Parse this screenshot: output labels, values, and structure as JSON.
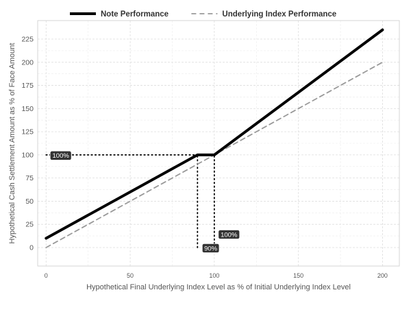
{
  "chart_data": {
    "type": "line",
    "xlabel": "Hypothetical Final Underlying Index Level as % of Initial Underlying Index Level",
    "ylabel": "Hypothetical Cash Settlement Amount as % of Face Amount",
    "xlim": [
      -5,
      210
    ],
    "ylim": [
      -20,
      245
    ],
    "x_ticks": [
      0,
      50,
      100,
      150,
      200
    ],
    "y_ticks": [
      0,
      25,
      50,
      75,
      100,
      125,
      150,
      175,
      200,
      225
    ],
    "grid": true,
    "legend_position": "top",
    "series": [
      {
        "name": "Note Performance",
        "style": "solid",
        "color": "#000000",
        "x": [
          0,
          90,
          100,
          200
        ],
        "y": [
          10,
          100,
          100,
          235
        ]
      },
      {
        "name": "Underlying Index Performance",
        "style": "dashed",
        "color": "#999999",
        "x": [
          0,
          200
        ],
        "y": [
          0,
          200
        ]
      }
    ],
    "reference_lines": [
      {
        "from": [
          0,
          100
        ],
        "to": [
          90,
          100
        ]
      },
      {
        "from": [
          90,
          0
        ],
        "to": [
          90,
          100
        ]
      },
      {
        "from": [
          100,
          0
        ],
        "to": [
          100,
          100
        ]
      }
    ],
    "annotations": [
      {
        "text": "100%",
        "x": 0,
        "y": 100
      },
      {
        "text": "90%",
        "x": 90,
        "y": 0
      },
      {
        "text": "100%",
        "x": 100,
        "y": 0
      }
    ]
  }
}
